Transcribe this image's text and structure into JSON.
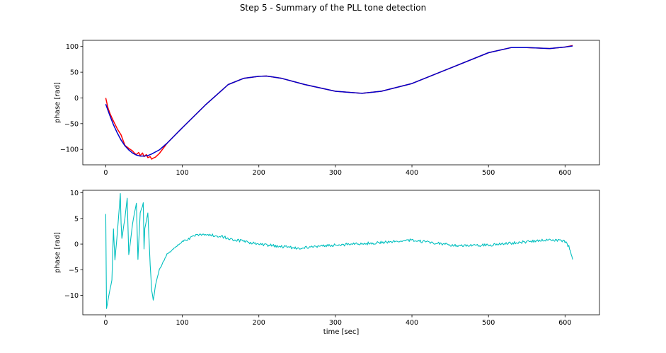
{
  "title": "Step 5 - Summary of the PLL tone detection",
  "chart_data": [
    {
      "type": "line",
      "ylabel": "phase [rad]",
      "xlabel": "",
      "xlim": [
        -30,
        645
      ],
      "ylim": [
        -130,
        112
      ],
      "xticks": [
        0,
        100,
        200,
        300,
        400,
        500,
        600
      ],
      "yticks": [
        -100,
        -50,
        0,
        50,
        100
      ],
      "grid": false,
      "series": [
        {
          "color": "#ff0000",
          "x": [
            0,
            3,
            6,
            10,
            15,
            20,
            22,
            25,
            30,
            35,
            38,
            40,
            43,
            45,
            48,
            50,
            53,
            55,
            58,
            60,
            62,
            65,
            70,
            80,
            100,
            130,
            160,
            180,
            200,
            210,
            230,
            260,
            300,
            335,
            360,
            400,
            450,
            500,
            530,
            550,
            580,
            600,
            610
          ],
          "y": [
            0,
            -20,
            -32,
            -45,
            -60,
            -72,
            -80,
            -92,
            -98,
            -103,
            -108,
            -110,
            -106,
            -112,
            -107,
            -114,
            -110,
            -116,
            -114,
            -119,
            -117,
            -115,
            -108,
            -88,
            -58,
            -14,
            26,
            38,
            42,
            42.5,
            38,
            26,
            13,
            9,
            13,
            28,
            58,
            88,
            98,
            98,
            96,
            99,
            102
          ]
        },
        {
          "color": "#0000cc",
          "x": [
            0,
            5,
            10,
            15,
            20,
            25,
            30,
            35,
            40,
            45,
            50,
            55,
            60,
            70,
            80,
            100,
            130,
            160,
            180,
            200,
            210,
            230,
            260,
            300,
            335,
            360,
            400,
            450,
            500,
            530,
            550,
            580,
            600,
            610
          ],
          "y": [
            -12,
            -33,
            -52,
            -68,
            -82,
            -93,
            -101,
            -107,
            -111,
            -113,
            -113,
            -112,
            -109,
            -101,
            -88,
            -58,
            -14,
            26,
            38,
            42,
            42.5,
            38,
            26,
            13,
            9,
            13,
            28,
            58,
            88,
            98,
            98,
            96,
            99,
            101
          ]
        }
      ]
    },
    {
      "type": "line",
      "ylabel": "phase [rad]",
      "xlabel": "time [sec]",
      "xlim": [
        -30,
        645
      ],
      "ylim": [
        -13.8,
        10.5
      ],
      "xticks": [
        0,
        100,
        200,
        300,
        400,
        500,
        600
      ],
      "yticks": [
        -10,
        -5,
        0,
        5,
        10
      ],
      "grid": false,
      "series": [
        {
          "color": "#00bfbf",
          "x": [
            0,
            1,
            8,
            10,
            12,
            15,
            19,
            20,
            21,
            25,
            28,
            30,
            31,
            35,
            40,
            42,
            45,
            49,
            50,
            51,
            55,
            58,
            60,
            62,
            65,
            70,
            80,
            100,
            120,
            130,
            150,
            170,
            200,
            250,
            300,
            350,
            380,
            400,
            430,
            460,
            500,
            540,
            570,
            590,
            600,
            605,
            608,
            610
          ],
          "y": [
            6,
            -12.5,
            -7,
            3,
            -3,
            2,
            10,
            4,
            1,
            5,
            9,
            -2,
            -1,
            4,
            8,
            -3,
            6,
            8,
            -1,
            3,
            6,
            -4,
            -9,
            -11,
            -8,
            -5,
            -2,
            0.5,
            1.8,
            2,
            1.5,
            0.8,
            0,
            -0.8,
            -0.2,
            0.2,
            0.5,
            0.8,
            0.2,
            -0.3,
            -0.2,
            0.3,
            0.8,
            0.8,
            0.5,
            -0.5,
            -2,
            -3
          ]
        }
      ]
    }
  ]
}
